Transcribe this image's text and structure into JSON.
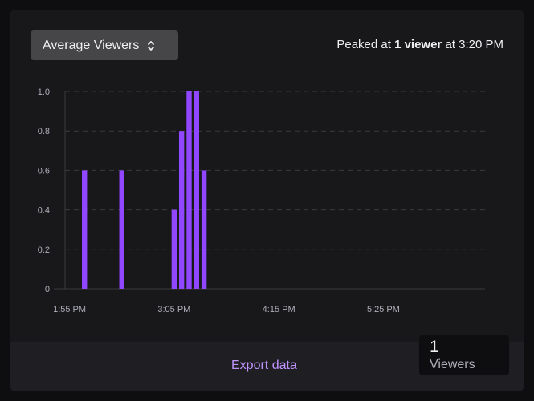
{
  "metric_select": {
    "label": "Average Viewers",
    "icon": "chevron-up-down-icon"
  },
  "peak": {
    "prefix": "Peaked at ",
    "value": "1 viewer",
    "suffix": " at 3:20 PM"
  },
  "footer": {
    "export_label": "Export data"
  },
  "tooltip": {
    "value": "1",
    "label": "Viewers"
  },
  "colors": {
    "bar": "#9147ff",
    "accent_link": "#bf94ff",
    "background": "#18181b"
  },
  "chart_data": {
    "type": "bar",
    "title": "",
    "xlabel": "",
    "ylabel": "",
    "ylim": [
      0,
      1.0
    ],
    "yticks": [
      "0",
      "0.2",
      "0.4",
      "0.6",
      "0.8",
      "1.0"
    ],
    "xticks": [
      "1:55 PM",
      "3:05 PM",
      "4:15 PM",
      "5:25 PM"
    ],
    "xlim": [
      "1:52 PM",
      "6:33 PM"
    ],
    "grid": "horizontal-dashed",
    "categories": [
      "2:05 PM",
      "2:30 PM",
      "3:05 PM",
      "3:10 PM",
      "3:15 PM",
      "3:20 PM",
      "3:25 PM"
    ],
    "values": [
      0.6,
      0.6,
      0.4,
      0.8,
      1.0,
      1.0,
      0.6
    ]
  }
}
